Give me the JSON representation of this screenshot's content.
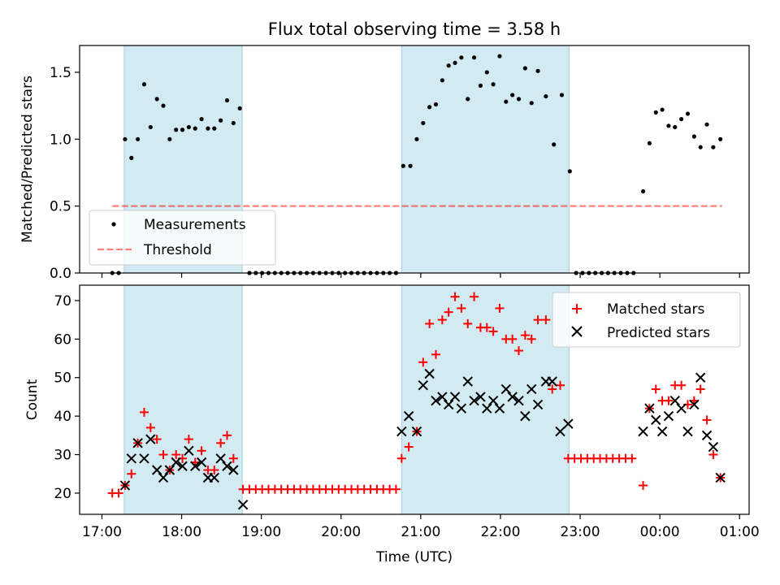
{
  "chart_data": [
    {
      "type": "scatter",
      "title": "Flux total observing time = 3.58 h",
      "ylabel": "Matched/Predicted stars",
      "xlabel": "",
      "ylim": [
        0,
        1.7
      ],
      "yticks": [
        "0.0",
        "0.5",
        "1.0",
        "1.5"
      ],
      "ytick_values": [
        0,
        0.5,
        1.0,
        1.5
      ],
      "xlim_hours": [
        16.72,
        25.12
      ],
      "xtick_values_hours": [
        17,
        18,
        19,
        20,
        21,
        22,
        23,
        24,
        25
      ],
      "shaded_intervals_hours": [
        [
          17.28,
          18.76
        ],
        [
          20.76,
          22.86
        ]
      ],
      "shade_color": "#add8e6",
      "legend": {
        "position": "lower-left",
        "entries": [
          "Measurements",
          "Threshold"
        ]
      },
      "threshold": {
        "name": "Threshold",
        "value": 0.5,
        "x_range_hours": [
          17.13,
          24.78
        ],
        "color": "#ff0000"
      },
      "series": [
        {
          "name": "Measurements",
          "marker": "dot",
          "color": "#000000",
          "points": [
            [
              17.13,
              0
            ],
            [
              17.21,
              0
            ],
            [
              17.29,
              1.0
            ],
            [
              17.37,
              0.86
            ],
            [
              17.45,
              1.0
            ],
            [
              17.53,
              1.41
            ],
            [
              17.61,
              1.09
            ],
            [
              17.69,
              1.3
            ],
            [
              17.77,
              1.25
            ],
            [
              17.85,
              1.0
            ],
            [
              17.93,
              1.07
            ],
            [
              18.01,
              1.07
            ],
            [
              18.09,
              1.09
            ],
            [
              18.17,
              1.08
            ],
            [
              18.25,
              1.15
            ],
            [
              18.33,
              1.08
            ],
            [
              18.41,
              1.08
            ],
            [
              18.49,
              1.14
            ],
            [
              18.57,
              1.29
            ],
            [
              18.65,
              1.12
            ],
            [
              18.73,
              1.23
            ],
            [
              18.85,
              0
            ],
            [
              18.93,
              0
            ],
            [
              19.01,
              0
            ],
            [
              19.09,
              0
            ],
            [
              19.17,
              0
            ],
            [
              19.25,
              0
            ],
            [
              19.33,
              0
            ],
            [
              19.41,
              0
            ],
            [
              19.49,
              0
            ],
            [
              19.57,
              0
            ],
            [
              19.65,
              0
            ],
            [
              19.73,
              0
            ],
            [
              19.81,
              0
            ],
            [
              19.89,
              0
            ],
            [
              19.97,
              0
            ],
            [
              20.05,
              0
            ],
            [
              20.13,
              0
            ],
            [
              20.21,
              0
            ],
            [
              20.29,
              0
            ],
            [
              20.37,
              0
            ],
            [
              20.45,
              0
            ],
            [
              20.53,
              0
            ],
            [
              20.61,
              0
            ],
            [
              20.69,
              0
            ],
            [
              20.78,
              0.8
            ],
            [
              20.87,
              0.8
            ],
            [
              20.95,
              1.0
            ],
            [
              21.03,
              1.12
            ],
            [
              21.11,
              1.24
            ],
            [
              21.19,
              1.26
            ],
            [
              21.27,
              1.44
            ],
            [
              21.35,
              1.55
            ],
            [
              21.43,
              1.57
            ],
            [
              21.51,
              1.61
            ],
            [
              21.59,
              1.3
            ],
            [
              21.67,
              1.61
            ],
            [
              21.75,
              1.4
            ],
            [
              21.83,
              1.5
            ],
            [
              21.91,
              1.41
            ],
            [
              21.99,
              1.62
            ],
            [
              22.07,
              1.28
            ],
            [
              22.15,
              1.33
            ],
            [
              22.23,
              1.3
            ],
            [
              22.31,
              1.53
            ],
            [
              22.39,
              1.27
            ],
            [
              22.47,
              1.51
            ],
            [
              22.57,
              1.32
            ],
            [
              22.67,
              0.96
            ],
            [
              22.77,
              1.33
            ],
            [
              22.87,
              0.76
            ],
            [
              22.95,
              0
            ],
            [
              23.03,
              0
            ],
            [
              23.11,
              0
            ],
            [
              23.19,
              0
            ],
            [
              23.27,
              0
            ],
            [
              23.35,
              0
            ],
            [
              23.43,
              0
            ],
            [
              23.51,
              0
            ],
            [
              23.59,
              0
            ],
            [
              23.67,
              0
            ],
            [
              23.79,
              0.61
            ],
            [
              23.87,
              0.97
            ],
            [
              23.95,
              1.2
            ],
            [
              24.03,
              1.22
            ],
            [
              24.11,
              1.1
            ],
            [
              24.19,
              1.09
            ],
            [
              24.27,
              1.15
            ],
            [
              24.35,
              1.19
            ],
            [
              24.43,
              1.02
            ],
            [
              24.51,
              0.94
            ],
            [
              24.59,
              1.11
            ],
            [
              24.67,
              0.94
            ],
            [
              24.76,
              1.0
            ]
          ]
        }
      ]
    },
    {
      "type": "scatter",
      "title": "",
      "ylabel": "Count",
      "xlabel": "Time (UTC)",
      "ylim": [
        14.5,
        74
      ],
      "yticks": [
        "20",
        "30",
        "40",
        "50",
        "60",
        "70"
      ],
      "ytick_values": [
        20,
        30,
        40,
        50,
        60,
        70
      ],
      "xlim_hours": [
        16.72,
        25.12
      ],
      "xticks": [
        "17:00",
        "18:00",
        "19:00",
        "20:00",
        "21:00",
        "22:00",
        "23:00",
        "00:00",
        "01:00"
      ],
      "xtick_values_hours": [
        17,
        18,
        19,
        20,
        21,
        22,
        23,
        24,
        25
      ],
      "shaded_intervals_hours": [
        [
          17.28,
          18.76
        ],
        [
          20.76,
          22.86
        ]
      ],
      "shade_color": "#add8e6",
      "legend": {
        "position": "top-right",
        "entries": [
          "Matched stars",
          "Predicted stars"
        ]
      },
      "series": [
        {
          "name": "Matched stars",
          "marker": "plus",
          "color": "#ff0000",
          "points": [
            [
              17.13,
              20
            ],
            [
              17.21,
              20
            ],
            [
              17.29,
              22
            ],
            [
              17.37,
              25
            ],
            [
              17.45,
              33
            ],
            [
              17.53,
              41
            ],
            [
              17.61,
              37
            ],
            [
              17.69,
              34
            ],
            [
              17.77,
              30
            ],
            [
              17.85,
              26
            ],
            [
              17.93,
              30
            ],
            [
              18.01,
              29
            ],
            [
              18.09,
              34
            ],
            [
              18.17,
              28
            ],
            [
              18.25,
              31
            ],
            [
              18.33,
              26
            ],
            [
              18.41,
              26
            ],
            [
              18.49,
              33
            ],
            [
              18.57,
              35
            ],
            [
              18.65,
              29
            ],
            [
              18.77,
              21
            ],
            [
              18.85,
              21
            ],
            [
              18.93,
              21
            ],
            [
              19.01,
              21
            ],
            [
              19.09,
              21
            ],
            [
              19.17,
              21
            ],
            [
              19.25,
              21
            ],
            [
              19.33,
              21
            ],
            [
              19.41,
              21
            ],
            [
              19.49,
              21
            ],
            [
              19.57,
              21
            ],
            [
              19.65,
              21
            ],
            [
              19.73,
              21
            ],
            [
              19.81,
              21
            ],
            [
              19.89,
              21
            ],
            [
              19.97,
              21
            ],
            [
              20.05,
              21
            ],
            [
              20.13,
              21
            ],
            [
              20.21,
              21
            ],
            [
              20.29,
              21
            ],
            [
              20.37,
              21
            ],
            [
              20.45,
              21
            ],
            [
              20.53,
              21
            ],
            [
              20.61,
              21
            ],
            [
              20.69,
              21
            ],
            [
              20.76,
              29
            ],
            [
              20.85,
              32
            ],
            [
              20.95,
              36
            ],
            [
              21.03,
              54
            ],
            [
              21.11,
              64
            ],
            [
              21.19,
              56
            ],
            [
              21.27,
              65
            ],
            [
              21.35,
              67
            ],
            [
              21.43,
              71
            ],
            [
              21.51,
              68
            ],
            [
              21.59,
              64
            ],
            [
              21.67,
              71
            ],
            [
              21.75,
              63
            ],
            [
              21.83,
              63
            ],
            [
              21.91,
              62
            ],
            [
              21.99,
              68
            ],
            [
              22.07,
              60
            ],
            [
              22.15,
              60
            ],
            [
              22.23,
              57
            ],
            [
              22.31,
              61
            ],
            [
              22.39,
              60
            ],
            [
              22.47,
              65
            ],
            [
              22.57,
              65
            ],
            [
              22.65,
              47
            ],
            [
              22.75,
              48
            ],
            [
              22.85,
              29
            ],
            [
              22.93,
              29
            ],
            [
              23.01,
              29
            ],
            [
              23.09,
              29
            ],
            [
              23.17,
              29
            ],
            [
              23.25,
              29
            ],
            [
              23.33,
              29
            ],
            [
              23.41,
              29
            ],
            [
              23.49,
              29
            ],
            [
              23.57,
              29
            ],
            [
              23.65,
              29
            ],
            [
              23.79,
              22
            ],
            [
              23.87,
              42
            ],
            [
              23.95,
              47
            ],
            [
              24.03,
              44
            ],
            [
              24.11,
              44
            ],
            [
              24.19,
              48
            ],
            [
              24.27,
              48
            ],
            [
              24.35,
              43
            ],
            [
              24.43,
              44
            ],
            [
              24.51,
              47
            ],
            [
              24.59,
              39
            ],
            [
              24.67,
              30
            ],
            [
              24.76,
              24
            ]
          ]
        },
        {
          "name": "Predicted stars",
          "marker": "x",
          "color": "#000000",
          "points": [
            [
              17.29,
              22
            ],
            [
              17.37,
              29
            ],
            [
              17.45,
              33
            ],
            [
              17.53,
              29
            ],
            [
              17.61,
              34
            ],
            [
              17.69,
              26
            ],
            [
              17.77,
              24
            ],
            [
              17.85,
              26
            ],
            [
              17.93,
              28
            ],
            [
              18.01,
              27
            ],
            [
              18.09,
              31
            ],
            [
              18.17,
              27
            ],
            [
              18.25,
              28
            ],
            [
              18.33,
              24
            ],
            [
              18.41,
              24
            ],
            [
              18.49,
              29
            ],
            [
              18.57,
              27
            ],
            [
              18.65,
              26
            ],
            [
              18.77,
              17
            ],
            [
              20.76,
              36
            ],
            [
              20.85,
              40
            ],
            [
              20.95,
              36
            ],
            [
              21.03,
              48
            ],
            [
              21.11,
              51
            ],
            [
              21.19,
              44
            ],
            [
              21.27,
              45
            ],
            [
              21.35,
              43
            ],
            [
              21.43,
              45
            ],
            [
              21.51,
              42
            ],
            [
              21.59,
              49
            ],
            [
              21.67,
              44
            ],
            [
              21.75,
              45
            ],
            [
              21.83,
              42
            ],
            [
              21.91,
              44
            ],
            [
              21.99,
              42
            ],
            [
              22.07,
              47
            ],
            [
              22.15,
              45
            ],
            [
              22.23,
              44
            ],
            [
              22.31,
              40
            ],
            [
              22.39,
              47
            ],
            [
              22.47,
              43
            ],
            [
              22.57,
              49
            ],
            [
              22.65,
              49
            ],
            [
              22.75,
              36
            ],
            [
              22.85,
              38
            ],
            [
              23.79,
              36
            ],
            [
              23.87,
              42
            ],
            [
              23.95,
              39
            ],
            [
              24.03,
              36
            ],
            [
              24.11,
              40
            ],
            [
              24.19,
              44
            ],
            [
              24.27,
              42
            ],
            [
              24.35,
              36
            ],
            [
              24.43,
              43
            ],
            [
              24.51,
              50
            ],
            [
              24.59,
              35
            ],
            [
              24.67,
              32
            ],
            [
              24.76,
              24
            ]
          ]
        }
      ]
    }
  ]
}
